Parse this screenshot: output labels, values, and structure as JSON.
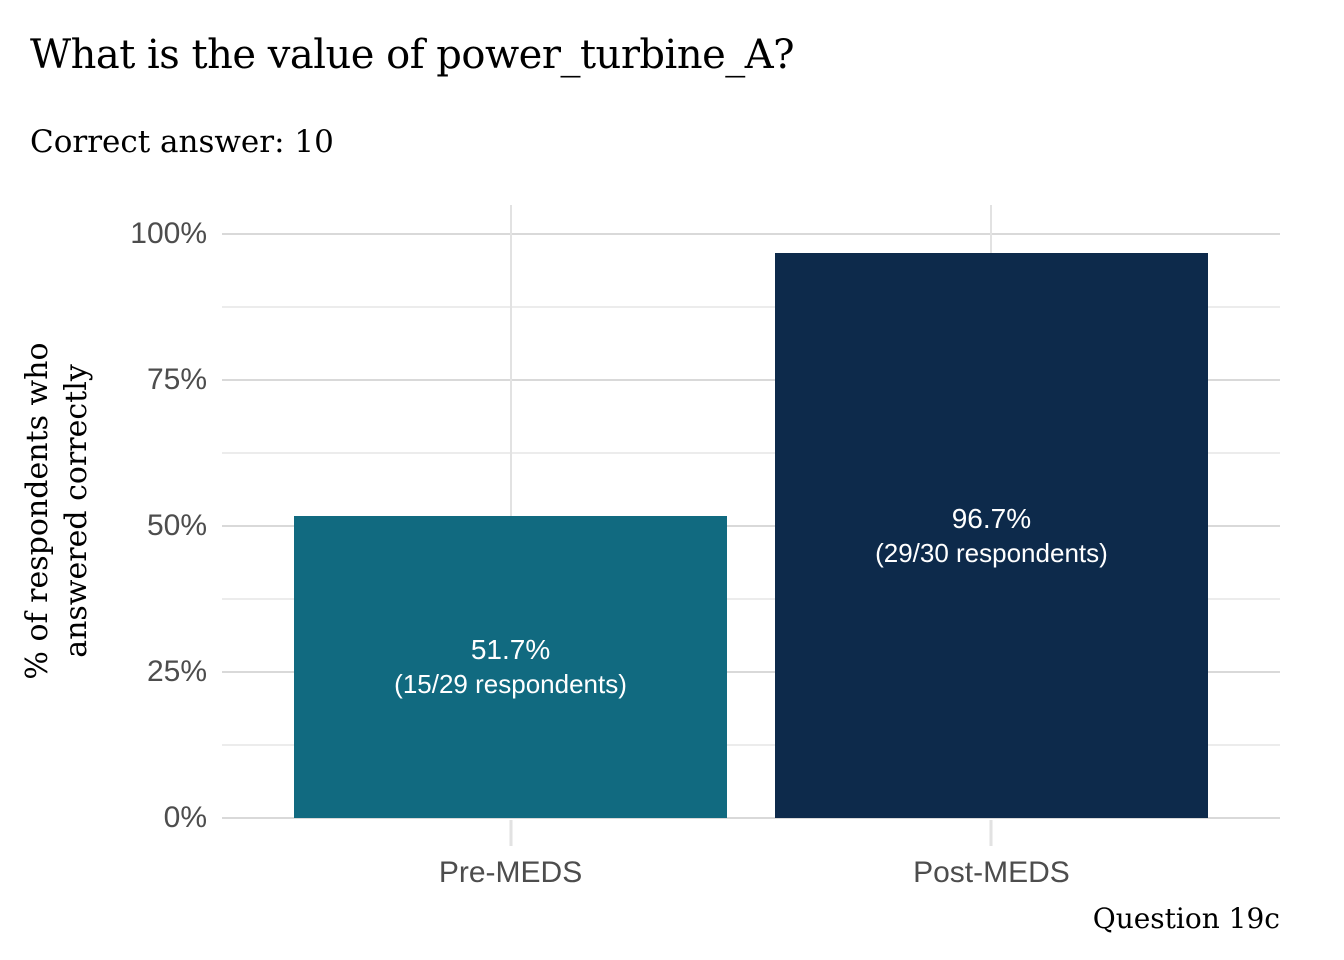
{
  "chart_data": {
    "type": "bar",
    "title": "What is the value of power_turbine_A?",
    "subtitle": "Correct answer: 10",
    "ylabel_line1": "% of respondents who",
    "ylabel_line2": "answered correctly",
    "xlabel": "",
    "caption": "Question 19c",
    "ylim": [
      0,
      105
    ],
    "y_major_ticks": [
      0,
      25,
      50,
      75,
      100
    ],
    "y_minor_ticks": [
      12.5,
      37.5,
      62.5,
      87.5
    ],
    "y_tick_labels": [
      "0%",
      "25%",
      "50%",
      "75%",
      "100%"
    ],
    "categories": [
      "Pre-MEDS",
      "Post-MEDS"
    ],
    "series": [
      {
        "name": "% of respondents who answered correctly",
        "values": [
          51.7,
          96.7
        ]
      }
    ],
    "bars": [
      {
        "category": "Pre-MEDS",
        "value": 51.7,
        "pct_label": "51.7%",
        "count_label": "(15/29 respondents)",
        "correct": 15,
        "total": 29,
        "color": "#116a80"
      },
      {
        "category": "Post-MEDS",
        "value": 96.7,
        "pct_label": "96.7%",
        "count_label": "(29/30 respondents)",
        "correct": 29,
        "total": 30,
        "color": "#0d2a4b"
      }
    ],
    "grid": {
      "horizontal": "major+minor",
      "vertical": "at category centers"
    },
    "legend": "none",
    "bar_width_fraction": 0.9
  },
  "colors": {
    "background": "#ffffff",
    "bar_pre_meds": "#116a80",
    "bar_post_meds": "#0d2a4b",
    "grid_major": "#d9d9d9",
    "grid_minor": "#ececec",
    "tick_mark": "#e2e2e2",
    "axis_text": "#4d4d4d",
    "title_text": "#000000",
    "bar_label_text": "#ffffff"
  }
}
